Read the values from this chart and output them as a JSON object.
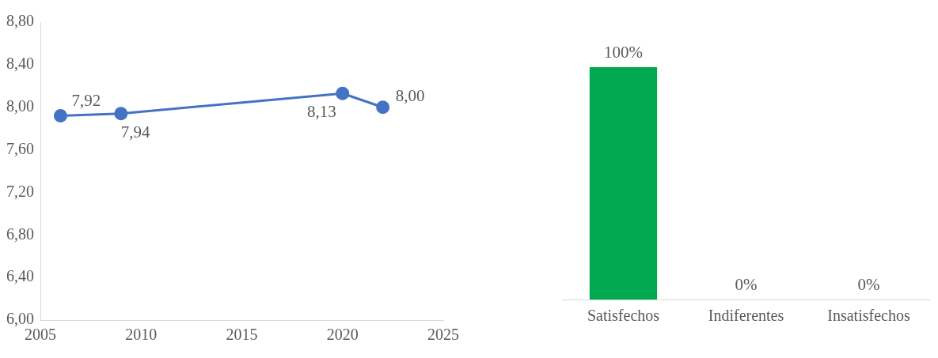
{
  "chart_data": [
    {
      "type": "line",
      "x": [
        2006,
        2009,
        2020,
        2022
      ],
      "values": [
        7.92,
        7.94,
        8.13,
        8.0
      ],
      "color": "#4472c4",
      "marker": "circle",
      "line_style": "solid",
      "value_labels": [
        "7,92",
        "7,94",
        "8,13",
        "8,00"
      ],
      "xlim": [
        2005,
        2025
      ],
      "xticks": [
        2005,
        2010,
        2015,
        2020,
        2025
      ],
      "ylim": [
        6,
        8.8
      ],
      "yticks": [
        {
          "value": 6,
          "label": "6,00"
        },
        {
          "value": 6.4,
          "label": "6,40"
        },
        {
          "value": 6.8,
          "label": "6,80"
        },
        {
          "value": 7.2,
          "label": "7,20"
        },
        {
          "value": 7.6,
          "label": "7,60"
        },
        {
          "value": 8,
          "label": "8,00"
        },
        {
          "value": 8.4,
          "label": "8,40"
        },
        {
          "value": 8.8,
          "label": "8,80"
        }
      ],
      "grid": false,
      "legend": false
    },
    {
      "type": "bar",
      "categories": [
        "Satisfechos",
        "Indiferentes",
        "Insatisfechos"
      ],
      "values": [
        100,
        0,
        0
      ],
      "color": "#00a84f",
      "value_labels": [
        "100%",
        "0%",
        "0%"
      ],
      "tick_labels": "x",
      "grid": false,
      "legend": false
    }
  ]
}
